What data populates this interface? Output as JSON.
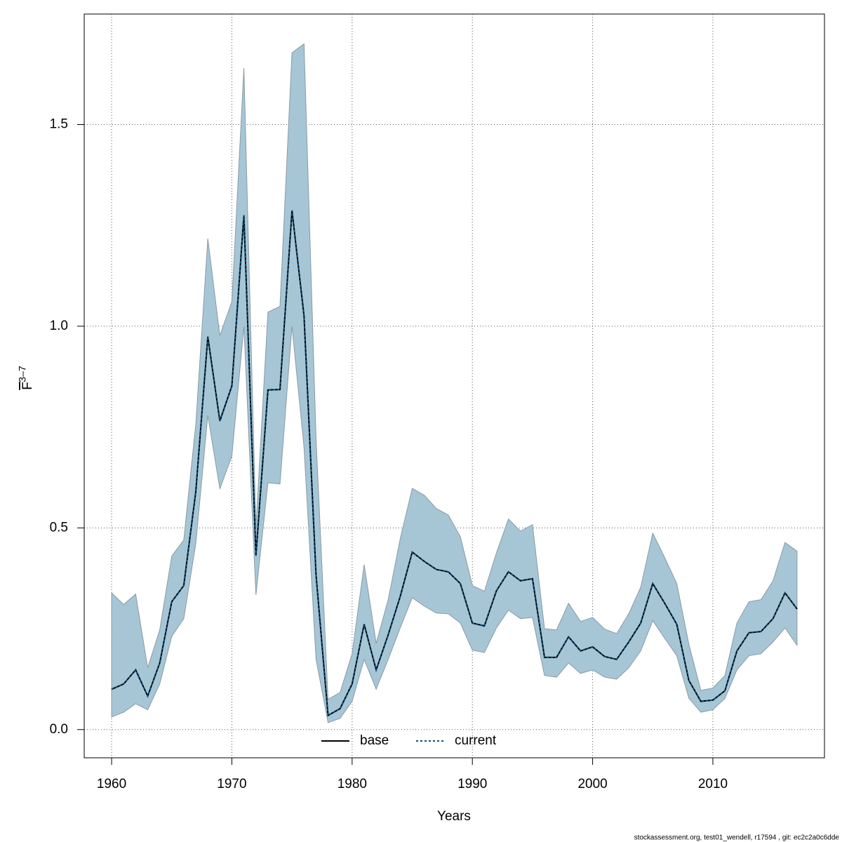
{
  "chart_data": {
    "type": "line",
    "xlabel": "Years",
    "ylabel": {
      "symbol": "F",
      "subscript": "3–7"
    },
    "footer": "stockassessment.org, test01_wendell, r17594 , git: ec2c2a0c6dde",
    "x": [
      1960,
      1961,
      1962,
      1963,
      1964,
      1965,
      1966,
      1967,
      1968,
      1969,
      1970,
      1971,
      1972,
      1973,
      1974,
      1975,
      1976,
      1977,
      1978,
      1979,
      1980,
      1981,
      1982,
      1983,
      1984,
      1985,
      1986,
      1987,
      1988,
      1989,
      1990,
      1991,
      1992,
      1993,
      1994,
      1995,
      1996,
      1997,
      1998,
      1999,
      2000,
      2001,
      2002,
      2003,
      2004,
      2005,
      2006,
      2007,
      2008,
      2009,
      2010,
      2011,
      2012,
      2013,
      2014,
      2015,
      2016,
      2017
    ],
    "xlim": [
      1957.72,
      2019.28
    ],
    "xticks": [
      1960,
      1970,
      1980,
      1990,
      2000,
      2010
    ],
    "ylim": [
      -0.07,
      1.774
    ],
    "yticks": [
      {
        "value": 0,
        "label": "0.0"
      },
      0.5,
      {
        "value": 1,
        "label": "1.0"
      },
      1.5
    ],
    "grid": true,
    "legend": "bottom",
    "band": {
      "color": "#a6c6d6",
      "edge": "#8a9aa4",
      "upper": [
        0.339,
        0.31,
        0.336,
        0.153,
        0.247,
        0.43,
        0.47,
        0.757,
        1.217,
        0.977,
        1.061,
        1.64,
        0.5,
        1.035,
        1.049,
        1.678,
        1.7,
        0.722,
        0.075,
        0.092,
        0.188,
        0.409,
        0.214,
        0.322,
        0.473,
        0.598,
        0.581,
        0.548,
        0.532,
        0.478,
        0.357,
        0.343,
        0.438,
        0.522,
        0.492,
        0.508,
        0.25,
        0.247,
        0.313,
        0.268,
        0.278,
        0.249,
        0.238,
        0.287,
        0.353,
        0.487,
        0.426,
        0.362,
        0.212,
        0.097,
        0.103,
        0.134,
        0.264,
        0.317,
        0.322,
        0.369,
        0.464,
        0.442
      ],
      "lower": [
        0.031,
        0.043,
        0.064,
        0.049,
        0.113,
        0.231,
        0.275,
        0.461,
        0.779,
        0.597,
        0.678,
        1.0,
        0.334,
        0.612,
        0.609,
        1.0,
        0.7,
        0.174,
        0.017,
        0.028,
        0.07,
        0.174,
        0.1,
        0.174,
        0.252,
        0.327,
        0.306,
        0.289,
        0.287,
        0.264,
        0.197,
        0.191,
        0.252,
        0.296,
        0.275,
        0.278,
        0.134,
        0.13,
        0.165,
        0.139,
        0.148,
        0.13,
        0.125,
        0.153,
        0.195,
        0.27,
        0.226,
        0.183,
        0.078,
        0.043,
        0.049,
        0.077,
        0.148,
        0.183,
        0.188,
        0.217,
        0.252,
        0.209
      ]
    },
    "series": [
      {
        "name": "base",
        "color": "#000000",
        "dash": "solid",
        "values": [
          0.1,
          0.113,
          0.148,
          0.083,
          0.165,
          0.317,
          0.357,
          0.59,
          0.974,
          0.765,
          0.852,
          1.275,
          0.431,
          0.842,
          0.843,
          1.287,
          1.026,
          0.383,
          0.035,
          0.052,
          0.113,
          0.261,
          0.148,
          0.235,
          0.33,
          0.44,
          0.417,
          0.397,
          0.391,
          0.362,
          0.264,
          0.257,
          0.344,
          0.391,
          0.369,
          0.374,
          0.179,
          0.179,
          0.23,
          0.195,
          0.205,
          0.181,
          0.174,
          0.217,
          0.264,
          0.362,
          0.313,
          0.261,
          0.122,
          0.07,
          0.073,
          0.096,
          0.195,
          0.24,
          0.243,
          0.275,
          0.339,
          0.299
        ]
      },
      {
        "name": "current",
        "color": "#0b4f7a",
        "dash": "dotted",
        "values": [
          0.1,
          0.113,
          0.148,
          0.083,
          0.165,
          0.317,
          0.357,
          0.59,
          0.974,
          0.765,
          0.852,
          1.275,
          0.431,
          0.842,
          0.843,
          1.287,
          1.026,
          0.383,
          0.035,
          0.052,
          0.113,
          0.261,
          0.148,
          0.235,
          0.33,
          0.44,
          0.417,
          0.397,
          0.391,
          0.362,
          0.264,
          0.257,
          0.344,
          0.391,
          0.369,
          0.374,
          0.179,
          0.179,
          0.23,
          0.195,
          0.205,
          0.181,
          0.174,
          0.217,
          0.264,
          0.362,
          0.313,
          0.261,
          0.122,
          0.07,
          0.073,
          0.096,
          0.195,
          0.24,
          0.243,
          0.275,
          0.339,
          0.299
        ]
      }
    ]
  }
}
